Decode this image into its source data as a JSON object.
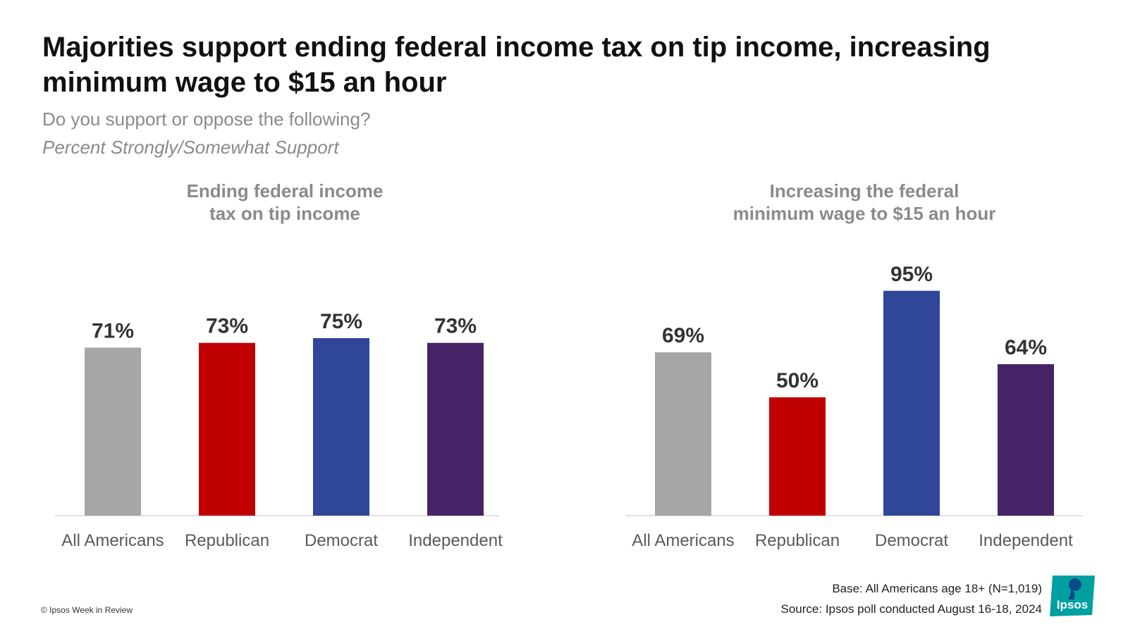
{
  "header": {
    "title": "Majorities support ending federal income tax on tip income, increasing minimum wage to $15 an hour",
    "subtitle": "Do you support or oppose the following?",
    "note": "Percent Strongly/Somewhat Support"
  },
  "chart_data": [
    {
      "type": "bar",
      "title": "Ending federal income tax on tip income",
      "title_lines": [
        "Ending federal income",
        "tax on tip income"
      ],
      "categories": [
        "All Americans",
        "Republican",
        "Democrat",
        "Independent"
      ],
      "values": [
        71,
        73,
        75,
        73
      ],
      "value_labels": [
        "71%",
        "73%",
        "75%",
        "73%"
      ],
      "colors": [
        "#a6a6a6",
        "#c00000",
        "#2f4699",
        "#452366"
      ],
      "ylim": [
        0,
        100
      ]
    },
    {
      "type": "bar",
      "title": "Increasing the federal minimum wage to $15 an hour",
      "title_lines": [
        "Increasing the federal",
        "minimum wage to $15 an hour"
      ],
      "categories": [
        "All Americans",
        "Republican",
        "Democrat",
        "Independent"
      ],
      "values": [
        69,
        50,
        95,
        64
      ],
      "value_labels": [
        "69%",
        "50%",
        "95%",
        "64%"
      ],
      "colors": [
        "#a6a6a6",
        "#c00000",
        "#2f4699",
        "#452366"
      ],
      "ylim": [
        0,
        100
      ]
    }
  ],
  "footer": {
    "base": "Base:  All Americans age 18+ (N=1,019)",
    "source": "Source: Ipsos poll conducted August 16-18, 2024",
    "copyright": "© Ipsos Week in Review",
    "logo_text": "Ipsos",
    "logo_color": "#00a0a0"
  }
}
